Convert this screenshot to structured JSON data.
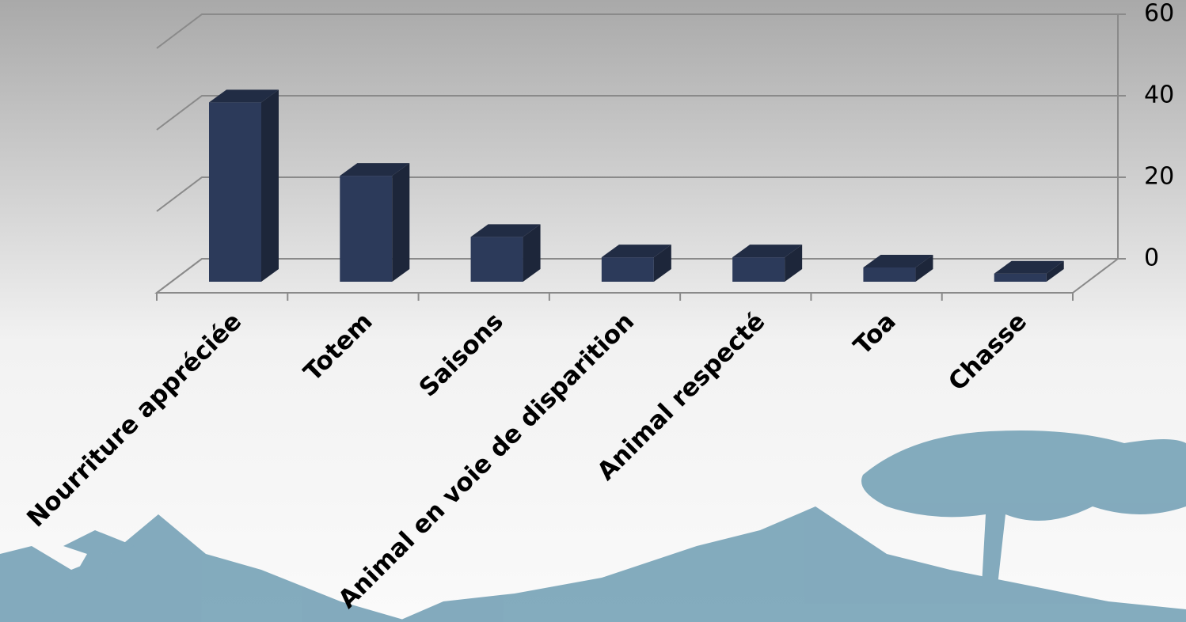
{
  "chart_data": {
    "type": "bar3d",
    "categories": [
      "Nourriture appréciée",
      "Totem",
      "Saisons",
      "Animal en voie de disparition",
      "Animal respecté",
      "Toa",
      "Chasse"
    ],
    "values": [
      44,
      26,
      11,
      6,
      6,
      3.5,
      2
    ],
    "color": "#2c3a5a",
    "ylim": [
      0,
      60
    ],
    "yticks": [
      0,
      20,
      40,
      60
    ],
    "grid": true
  }
}
